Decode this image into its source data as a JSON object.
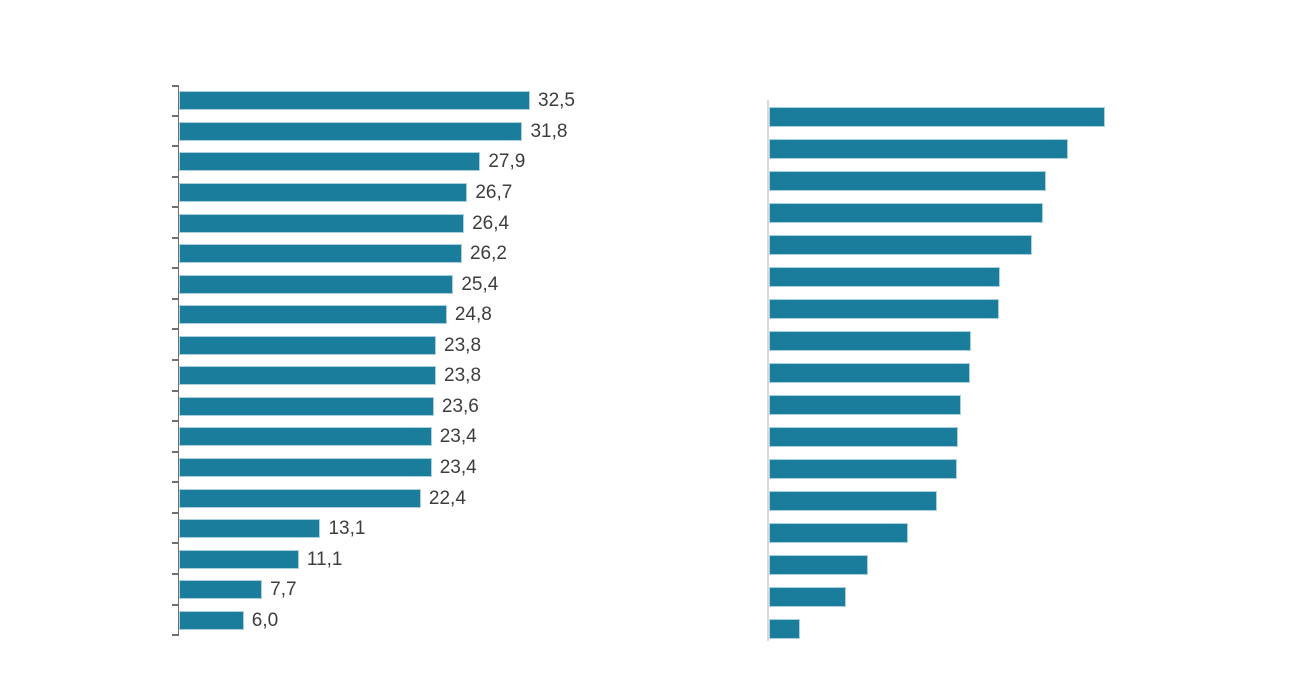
{
  "canvas": {
    "background": "#ffffff"
  },
  "colors": {
    "bar_fill": "#1a7d9c",
    "bar_border": "#aad0dd",
    "left_axis": "#707070",
    "right_axis": "#d9d9d9",
    "data_label": "#3d3d3d"
  },
  "chart_data": [
    {
      "id": "left-chart",
      "type": "bar",
      "orientation": "horizontal",
      "title": "",
      "xlabel": "",
      "ylabel": "",
      "values": [
        32.5,
        31.8,
        27.9,
        26.7,
        26.4,
        26.2,
        25.4,
        24.8,
        23.8,
        23.8,
        23.6,
        23.4,
        23.4,
        22.4,
        13.1,
        11.1,
        7.7,
        6.0
      ],
      "value_labels": [
        "32,5",
        "31,8",
        "27,9",
        "26,7",
        "26,4",
        "26,2",
        "25,4",
        "24,8",
        "23,8",
        "23,8",
        "23,6",
        "23,4",
        "23,4",
        "22,4",
        "13,1",
        "11,1",
        "7,7",
        "6,0"
      ],
      "decimal_separator": ",",
      "data_labels_visible": true,
      "value_axis": {
        "visible": false,
        "min": 0
      },
      "category_axis": {
        "line": true,
        "tick_marks": true,
        "labels": false
      },
      "grid": false,
      "legend": false
    },
    {
      "id": "right-chart",
      "type": "bar",
      "orientation": "horizontal",
      "title": "",
      "xlabel": "",
      "ylabel": "",
      "values_pct_of_max": [
        100,
        89.0,
        82.4,
        81.5,
        78.3,
        68.8,
        68.5,
        60.1,
        59.8,
        57.1,
        56.3,
        56.0,
        50.0,
        41.4,
        29.5,
        22.9,
        9.2
      ],
      "data_labels_visible": false,
      "value_axis": {
        "visible": false,
        "min": 0
      },
      "category_axis": {
        "line": true,
        "tick_marks": false,
        "labels": false
      },
      "grid": false,
      "legend": false
    }
  ]
}
